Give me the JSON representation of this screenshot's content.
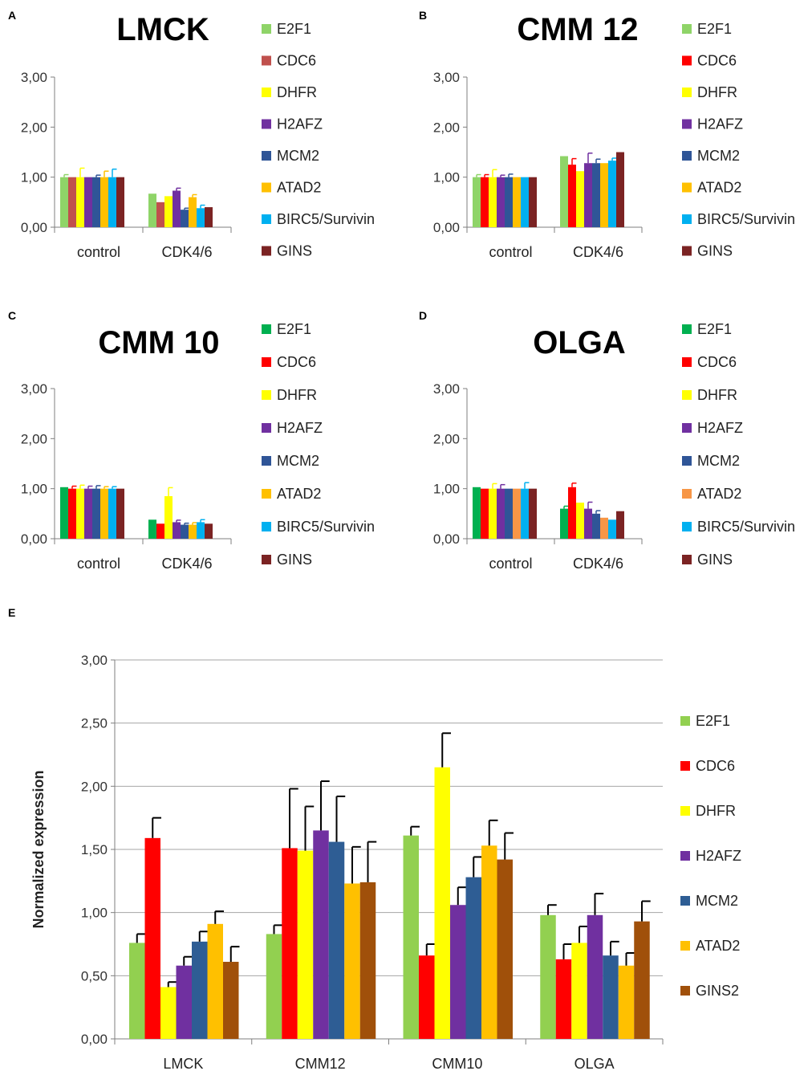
{
  "panel_labels": [
    "A",
    "B",
    "C",
    "D",
    "E"
  ],
  "chart_data": [
    {
      "type": "bar",
      "panel": "A",
      "title": "LMCK",
      "categories": [
        "control",
        "CDK4/6"
      ],
      "ylim": [
        0,
        3
      ],
      "yticks": [
        "0,00",
        "1,00",
        "2,00",
        "3,00"
      ],
      "ytick_values": [
        0,
        1,
        2,
        3
      ],
      "series": [
        {
          "name": "E2F1",
          "color": "#8fd468",
          "values": [
            1.0,
            0.67
          ],
          "errors": [
            0.05,
            0.0
          ]
        },
        {
          "name": "CDC6",
          "color": "#c0504d",
          "values": [
            1.0,
            0.5
          ],
          "errors": [
            0.0,
            0.0
          ]
        },
        {
          "name": "DHFR",
          "color": "#ffff00",
          "values": [
            1.0,
            0.62
          ],
          "errors": [
            0.18,
            0.0
          ]
        },
        {
          "name": "H2AFZ",
          "color": "#7030a0",
          "values": [
            1.0,
            0.73
          ],
          "errors": [
            0.0,
            0.05
          ]
        },
        {
          "name": "MCM2",
          "color": "#2f5597",
          "values": [
            1.0,
            0.35
          ],
          "errors": [
            0.04,
            0.03
          ]
        },
        {
          "name": "ATAD2",
          "color": "#ffc000",
          "values": [
            1.0,
            0.6
          ],
          "errors": [
            0.12,
            0.05
          ]
        },
        {
          "name": "BIRC5/Survivin",
          "color": "#00b0f0",
          "values": [
            1.0,
            0.38
          ],
          "errors": [
            0.16,
            0.06
          ]
        },
        {
          "name": "GINS",
          "color": "#7b2323",
          "values": [
            1.0,
            0.4
          ],
          "errors": [
            0.0,
            0.0
          ]
        }
      ]
    },
    {
      "type": "bar",
      "panel": "B",
      "title": "CMM 12",
      "categories": [
        "control",
        "CDK4/6"
      ],
      "ylim": [
        0,
        3
      ],
      "yticks": [
        "0,00",
        "1,00",
        "2,00",
        "3,00"
      ],
      "ytick_values": [
        0,
        1,
        2,
        3
      ],
      "series": [
        {
          "name": "E2F1",
          "color": "#8fd468",
          "values": [
            1.0,
            1.42
          ],
          "errors": [
            0.05,
            0.0
          ]
        },
        {
          "name": "CDC6",
          "color": "#ff0000",
          "values": [
            1.0,
            1.25
          ],
          "errors": [
            0.05,
            0.12
          ]
        },
        {
          "name": "DHFR",
          "color": "#ffff00",
          "values": [
            1.0,
            1.12
          ],
          "errors": [
            0.15,
            0.0
          ]
        },
        {
          "name": "H2AFZ",
          "color": "#7030a0",
          "values": [
            1.0,
            1.28
          ],
          "errors": [
            0.04,
            0.2
          ]
        },
        {
          "name": "MCM2",
          "color": "#2f5597",
          "values": [
            1.0,
            1.28
          ],
          "errors": [
            0.06,
            0.08
          ]
        },
        {
          "name": "ATAD2",
          "color": "#ffc000",
          "values": [
            1.0,
            1.28
          ],
          "errors": [
            0.0,
            0.0
          ]
        },
        {
          "name": "BIRC5/Survivin",
          "color": "#00b0f0",
          "values": [
            1.0,
            1.33
          ],
          "errors": [
            0.0,
            0.05
          ]
        },
        {
          "name": "GINS",
          "color": "#7b2323",
          "values": [
            1.0,
            1.5
          ],
          "errors": [
            0.0,
            0.0
          ]
        }
      ]
    },
    {
      "type": "bar",
      "panel": "C",
      "title": "CMM 10",
      "categories": [
        "control",
        "CDK4/6"
      ],
      "ylim": [
        0,
        3
      ],
      "yticks": [
        "0,00",
        "1,00",
        "2,00",
        "3,00"
      ],
      "ytick_values": [
        0,
        1,
        2,
        3
      ],
      "series": [
        {
          "name": "E2F1",
          "color": "#00b050",
          "values": [
            1.03,
            0.38
          ],
          "errors": [
            0.0,
            0.0
          ]
        },
        {
          "name": "CDC6",
          "color": "#ff0000",
          "values": [
            1.0,
            0.3
          ],
          "errors": [
            0.05,
            0.0
          ]
        },
        {
          "name": "DHFR",
          "color": "#ffff00",
          "values": [
            1.0,
            0.85
          ],
          "errors": [
            0.07,
            0.17
          ]
        },
        {
          "name": "H2AFZ",
          "color": "#7030a0",
          "values": [
            1.0,
            0.33
          ],
          "errors": [
            0.05,
            0.04
          ]
        },
        {
          "name": "MCM2",
          "color": "#2f5597",
          "values": [
            1.0,
            0.28
          ],
          "errors": [
            0.06,
            0.03
          ]
        },
        {
          "name": "ATAD2",
          "color": "#ffc000",
          "values": [
            1.0,
            0.28
          ],
          "errors": [
            0.04,
            0.04
          ]
        },
        {
          "name": "BIRC5/Survivin",
          "color": "#00b0f0",
          "values": [
            1.0,
            0.33
          ],
          "errors": [
            0.04,
            0.05
          ]
        },
        {
          "name": "GINS",
          "color": "#7b2323",
          "values": [
            1.0,
            0.3
          ],
          "errors": [
            0.0,
            0.0
          ]
        }
      ]
    },
    {
      "type": "bar",
      "panel": "D",
      "title": "OLGA",
      "categories": [
        "control",
        "CDK4/6"
      ],
      "ylim": [
        0,
        3
      ],
      "yticks": [
        "0,00",
        "1,00",
        "2,00",
        "3,00"
      ],
      "ytick_values": [
        0,
        1,
        2,
        3
      ],
      "series": [
        {
          "name": "E2F1",
          "color": "#00b050",
          "values": [
            1.03,
            0.6
          ],
          "errors": [
            0.0,
            0.05
          ]
        },
        {
          "name": "CDC6",
          "color": "#ff0000",
          "values": [
            1.0,
            1.03
          ],
          "errors": [
            0.0,
            0.08
          ]
        },
        {
          "name": "DHFR",
          "color": "#ffff00",
          "values": [
            1.0,
            0.72
          ],
          "errors": [
            0.1,
            0.0
          ]
        },
        {
          "name": "H2AFZ",
          "color": "#7030a0",
          "values": [
            1.0,
            0.6
          ],
          "errors": [
            0.08,
            0.13
          ]
        },
        {
          "name": "MCM2",
          "color": "#2f5597",
          "values": [
            1.0,
            0.5
          ],
          "errors": [
            0.0,
            0.06
          ]
        },
        {
          "name": "ATAD2",
          "color": "#f79646",
          "values": [
            1.0,
            0.42
          ],
          "errors": [
            0.0,
            0.0
          ]
        },
        {
          "name": "BIRC5/Survivin",
          "color": "#00b0f0",
          "values": [
            1.0,
            0.38
          ],
          "errors": [
            0.12,
            0.0
          ]
        },
        {
          "name": "GINS",
          "color": "#7b2323",
          "values": [
            1.0,
            0.55
          ],
          "errors": [
            0.0,
            0.0
          ]
        }
      ]
    },
    {
      "type": "bar",
      "panel": "E",
      "title": "",
      "ylabel": "Normalized expression",
      "categories": [
        "LMCK",
        "CMM12",
        "CMM10",
        "OLGA"
      ],
      "ylim": [
        0,
        3
      ],
      "yticks": [
        "0,00",
        "0,50",
        "1,00",
        "1,50",
        "2,00",
        "2,50",
        "3,00"
      ],
      "ytick_values": [
        0,
        0.5,
        1,
        1.5,
        2,
        2.5,
        3
      ],
      "series": [
        {
          "name": "E2F1",
          "color": "#92d050",
          "values": [
            0.76,
            0.83,
            1.61,
            0.98
          ],
          "errors": [
            0.07,
            0.07,
            0.07,
            0.08
          ]
        },
        {
          "name": "CDC6",
          "color": "#ff0000",
          "values": [
            1.59,
            1.51,
            0.66,
            0.63
          ],
          "errors": [
            0.16,
            0.47,
            0.09,
            0.12
          ]
        },
        {
          "name": "DHFR",
          "color": "#ffff00",
          "values": [
            0.41,
            1.49,
            2.15,
            0.76
          ],
          "errors": [
            0.04,
            0.35,
            0.27,
            0.13
          ]
        },
        {
          "name": "H2AFZ",
          "color": "#7030a0",
          "values": [
            0.58,
            1.65,
            1.06,
            0.98
          ],
          "errors": [
            0.07,
            0.39,
            0.14,
            0.17
          ]
        },
        {
          "name": "MCM2",
          "color": "#2e5d94",
          "values": [
            0.77,
            1.56,
            1.28,
            0.66
          ],
          "errors": [
            0.08,
            0.36,
            0.16,
            0.11
          ]
        },
        {
          "name": "ATAD2",
          "color": "#ffc000",
          "values": [
            0.91,
            1.23,
            1.53,
            0.58
          ],
          "errors": [
            0.1,
            0.29,
            0.2,
            0.1
          ]
        },
        {
          "name": "GINS2",
          "color": "#a0500a",
          "values": [
            0.61,
            1.24,
            1.42,
            0.93
          ],
          "errors": [
            0.12,
            0.32,
            0.21,
            0.16
          ]
        }
      ]
    }
  ]
}
